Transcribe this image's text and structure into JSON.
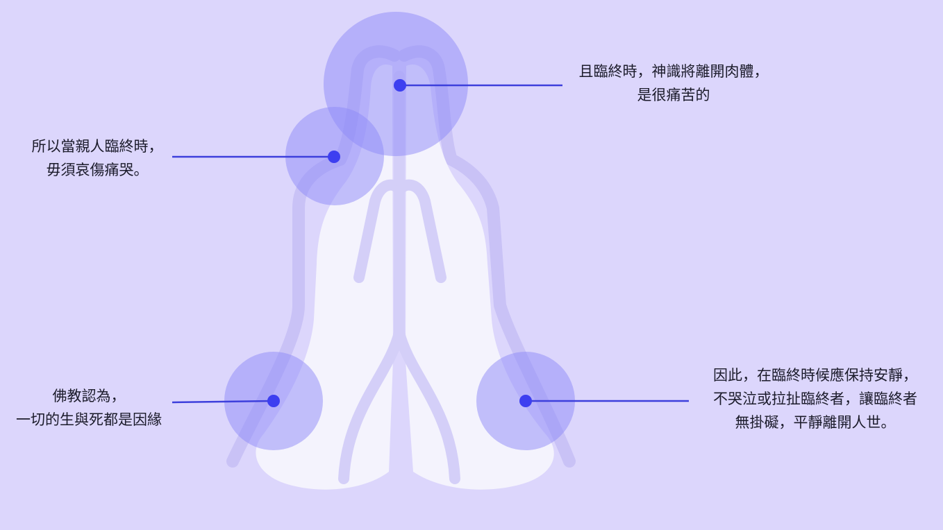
{
  "annotations": {
    "top_right": {
      "line1": "且臨終時，神識將離開肉體，",
      "line2": "是很痛苦的"
    },
    "left_upper": {
      "line1": "所以當親人臨終時，",
      "line2": "毋須哀傷痛哭。"
    },
    "left_lower": {
      "line1": "佛教認為，",
      "line2": "一切的生與死都是因緣"
    },
    "right_lower": {
      "line1": "因此，在臨終時候應保持安靜，",
      "line2": "不哭泣或拉扯臨終者，讓臨終者",
      "line3": "無掛礙，平靜離開人世。"
    }
  },
  "colors": {
    "background": "#dcd6fc",
    "hands_fill": "#f4f3fd",
    "hands_outline": "#c9c2f6",
    "hotspot_circle": "#8d8af8",
    "marker_dot": "#3d3ff0",
    "connector_line": "#3d3fdc"
  },
  "icons": {
    "illustration": "praying-hands-icon"
  }
}
